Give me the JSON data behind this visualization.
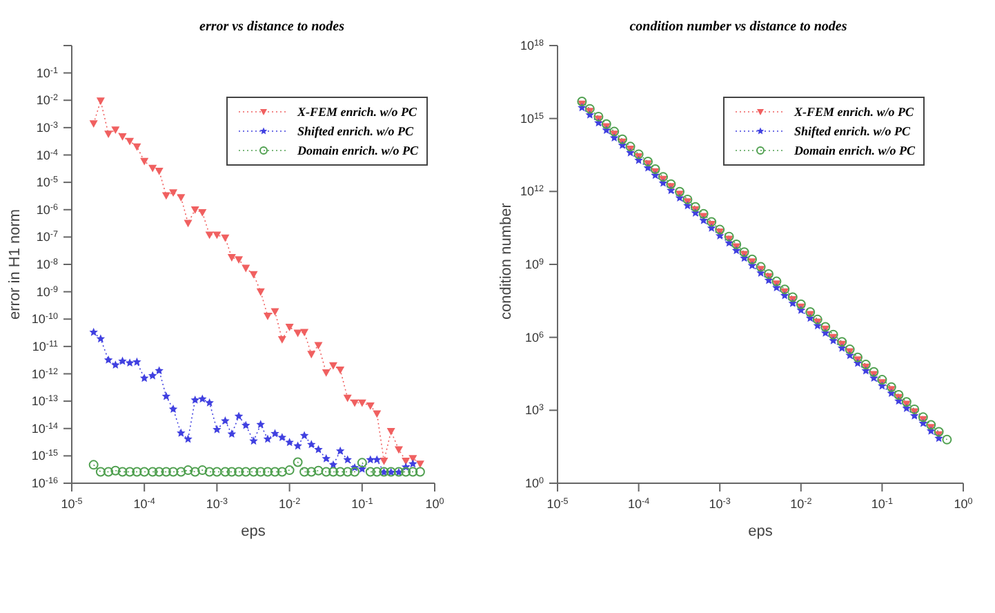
{
  "chart_data": [
    {
      "type": "line",
      "title": "error vs distance to nodes",
      "xlabel": "eps",
      "ylabel": "error in H1 norm",
      "log": "xy",
      "legend": "top right",
      "line_style": "dotted",
      "grid": false,
      "x": [
        2e-05,
        2.5e-05,
        3.2e-05,
        4e-05,
        5e-05,
        6.3e-05,
        7.9e-05,
        0.0001,
        0.00013,
        0.00016,
        0.0002,
        0.00025,
        0.00032,
        0.0004,
        0.0005,
        0.00063,
        0.00079,
        0.001,
        0.0013,
        0.0016,
        0.002,
        0.0025,
        0.0032,
        0.004,
        0.005,
        0.0063,
        0.0079,
        0.01,
        0.013,
        0.016,
        0.02,
        0.025,
        0.032,
        0.04,
        0.05,
        0.063,
        0.079,
        0.1,
        0.13,
        0.16,
        0.2,
        0.25,
        0.32,
        0.4,
        0.5,
        0.63
      ],
      "xlim": [
        1e-05,
        1
      ],
      "xticks": [
        {
          "value": 1e-05,
          "label": "10$^{-5}$"
        },
        {
          "value": 0.0001,
          "label": "10$^{-4}$"
        },
        {
          "value": 0.001,
          "label": "10$^{-3}$"
        },
        {
          "value": 0.01,
          "label": "10$^{-2}$"
        },
        {
          "value": 0.1,
          "label": "10$^{-1}$"
        },
        {
          "value": 1,
          "label": "10$^{0}$"
        }
      ],
      "ylim": [
        1e-16,
        1
      ],
      "yticks": [
        {
          "value": 1e-16,
          "label": "10$^{-16}$"
        },
        {
          "value": 1e-15,
          "label": "10$^{-15}$"
        },
        {
          "value": 1e-14,
          "label": "10$^{-14}$"
        },
        {
          "value": 1e-13,
          "label": "10$^{-13}$"
        },
        {
          "value": 1e-12,
          "label": "10$^{-12}$"
        },
        {
          "value": 1e-11,
          "label": "10$^{-11}$"
        },
        {
          "value": 1e-10,
          "label": "10$^{-10}$"
        },
        {
          "value": 1e-09,
          "label": "10$^{-9}$"
        },
        {
          "value": 1e-08,
          "label": "10$^{-8}$"
        },
        {
          "value": 1e-07,
          "label": "10$^{-7}$"
        },
        {
          "value": 1e-06,
          "label": "10$^{-6}$"
        },
        {
          "value": 1e-05,
          "label": "10$^{-5}$"
        },
        {
          "value": 0.0001,
          "label": "10$^{-4}$"
        },
        {
          "value": 0.001,
          "label": "10$^{-3}$"
        },
        {
          "value": 0.01,
          "label": "10$^{-2}$"
        },
        {
          "value": 0.1,
          "label": "10$^{-1}$"
        },
        {
          "value": 1,
          "label": null
        }
      ],
      "series": [
        {
          "name": "X-FEM enrich. w/o PC",
          "color": "#f06060",
          "marker": "triangle",
          "values": [
            0.0014,
            0.0095,
            0.00059,
            0.00083,
            0.00047,
            0.00032,
            0.0002,
            5.9e-05,
            3.3e-05,
            2.6e-05,
            3.3e-06,
            4.2e-06,
            2.8e-06,
            3.2e-07,
            1e-06,
            7.9e-07,
            1.2e-07,
            1.2e-07,
            9.3e-08,
            1.8e-08,
            1.5e-08,
            7.3e-09,
            4.3e-09,
            1e-09,
            1.3e-10,
            1.9e-10,
            1.8e-11,
            5.1e-11,
            3.1e-11,
            3.3e-11,
            5.2e-12,
            1.1e-11,
            1.1e-12,
            2e-12,
            1.4e-12,
            1.3e-13,
            8.7e-14,
            8.7e-14,
            6.8e-14,
            3.5e-14,
            6.5e-16,
            7.9e-15,
            1.7e-15,
            6.5e-16,
            8.1e-16,
            5.1e-16
          ]
        },
        {
          "name": "Shifted enrich. w/o PC",
          "color": "#4040e0",
          "marker": "star",
          "values": [
            3.3e-11,
            1.9e-11,
            3.2e-12,
            2.1e-12,
            2.9e-12,
            2.5e-12,
            2.7e-12,
            6.9e-13,
            8.5e-13,
            1.3e-12,
            1.5e-13,
            5.1e-14,
            6.8e-15,
            4.1e-15,
            1.1e-13,
            1.2e-13,
            8.7e-14,
            9.1e-15,
            1.9e-14,
            6.3e-15,
            2.8e-14,
            1.3e-14,
            3.5e-15,
            1.4e-14,
            4.1e-15,
            6.5e-15,
            4.7e-15,
            3.1e-15,
            2.3e-15,
            5.5e-15,
            2.6e-15,
            1.7e-15,
            7.9e-16,
            4.7e-16,
            1.5e-15,
            7.2e-16,
            3.7e-16,
            3.3e-16,
            7.2e-16,
            7.2e-16,
            2.5e-16,
            2.5e-16,
            2.5e-16,
            3.9e-16,
            5.1e-16,
            null
          ]
        },
        {
          "name": "Domain enrich. w/o PC",
          "color": "#50a050",
          "marker": "circle",
          "values": [
            4.7e-16,
            2.6e-16,
            2.6e-16,
            2.9e-16,
            2.6e-16,
            2.6e-16,
            2.6e-16,
            2.6e-16,
            2.6e-16,
            2.6e-16,
            2.6e-16,
            2.6e-16,
            2.6e-16,
            3e-16,
            2.6e-16,
            3e-16,
            2.6e-16,
            2.6e-16,
            2.6e-16,
            2.6e-16,
            2.6e-16,
            2.6e-16,
            2.6e-16,
            2.6e-16,
            2.6e-16,
            2.6e-16,
            2.6e-16,
            3e-16,
            5.9e-16,
            2.6e-16,
            2.6e-16,
            2.9e-16,
            2.6e-16,
            2.6e-16,
            2.6e-16,
            2.6e-16,
            2.6e-16,
            5.6e-16,
            2.6e-16,
            2.6e-16,
            2.6e-16,
            2.6e-16,
            2.6e-16,
            2.6e-16,
            2.6e-16,
            2.6e-16
          ]
        }
      ]
    },
    {
      "type": "line",
      "title": "condition number vs distance to nodes",
      "xlabel": "eps",
      "ylabel": "condition number",
      "log": "xy",
      "legend": "top right",
      "line_style": "dotted",
      "grid": false,
      "x": [
        2e-05,
        2.5e-05,
        3.2e-05,
        4e-05,
        5e-05,
        6.3e-05,
        7.9e-05,
        0.0001,
        0.00013,
        0.00016,
        0.0002,
        0.00025,
        0.00032,
        0.0004,
        0.0005,
        0.00063,
        0.00079,
        0.001,
        0.0013,
        0.0016,
        0.002,
        0.0025,
        0.0032,
        0.004,
        0.005,
        0.0063,
        0.0079,
        0.01,
        0.013,
        0.016,
        0.02,
        0.025,
        0.032,
        0.04,
        0.05,
        0.063,
        0.079,
        0.1,
        0.13,
        0.16,
        0.2,
        0.25,
        0.32,
        0.4,
        0.5,
        0.63
      ],
      "xlim": [
        1e-05,
        1
      ],
      "xticks": [
        {
          "value": 1e-05,
          "label": "10$^{-5}$"
        },
        {
          "value": 0.0001,
          "label": "10$^{-4}$"
        },
        {
          "value": 0.001,
          "label": "10$^{-3}$"
        },
        {
          "value": 0.01,
          "label": "10$^{-2}$"
        },
        {
          "value": 0.1,
          "label": "10$^{-1}$"
        },
        {
          "value": 1,
          "label": "10$^{0}$"
        }
      ],
      "ylim": [
        1,
        1e+18
      ],
      "yticks": [
        {
          "value": 1,
          "label": "10$^{0}$"
        },
        {
          "value": 1000.0,
          "label": "10$^{3}$"
        },
        {
          "value": 1000000.0,
          "label": "10$^{6}$"
        },
        {
          "value": 1000000000.0,
          "label": "10$^{9}$"
        },
        {
          "value": 1000000000000.0,
          "label": "10$^{12}$"
        },
        {
          "value": 1000000000000000.0,
          "label": "10$^{15}$"
        },
        {
          "value": 1e+18,
          "label": "10$^{18}$"
        }
      ],
      "series": [
        {
          "name": "X-FEM enrich. w/o PC",
          "color": "#f06060",
          "marker": "triangle",
          "values": [
            4000000000000000.0,
            2000000000000000.0,
            960000000000000.0,
            470000000000000.0,
            230000000000000.0,
            110000000000000.0,
            56000000000000.0,
            27000000000000.0,
            14000000000000.0,
            6600000000000.0,
            3200000000000.0,
            1600000000000.0,
            780000000000.0,
            380000000000.0,
            180000000000.0,
            96000000000.0,
            45000000000.0,
            22000000000.0,
            11000000000.0,
            5400000000.0,
            2600000000.0,
            1300000000.0,
            630000000.0,
            320000000.0,
            160000000.0,
            75000000.0,
            36000000.0,
            18000000.0,
            8800000.0,
            4300000.0,
            2200000.0,
            1000000.0,
            520000.0,
            260000.0,
            120000.0,
            61000.0,
            30000.0,
            14000.0,
            7200.0,
            3400.0,
            1800.0,
            880,
            420,
            200,
            100,
            null
          ]
        },
        {
          "name": "Shifted enrich. w/o PC",
          "color": "#4040e0",
          "marker": "star",
          "values": [
            2800000000000000.0,
            1400000000000000.0,
            660000000000000.0,
            330000000000000.0,
            160000000000000.0,
            79000000000000.0,
            39000000000000.0,
            19000000000000.0,
            9300000000000.0,
            4600000000000.0,
            2200000000000.0,
            1100000000000.0,
            540000000000.0,
            260000000000.0,
            130000000000.0,
            64000000000.0,
            31000000000.0,
            15000000000.0,
            7600000000.0,
            3700000000.0,
            1800000000.0,
            890000000.0,
            440000000.0,
            220000000.0,
            110000000.0,
            52000000.0,
            25000000.0,
            13000000.0,
            6100000.0,
            3000000.0,
            1500000.0,
            730000.0,
            360000.0,
            180000.0,
            86000.0,
            42000.0,
            21000.0,
            10000.0,
            5000.0,
            2400.0,
            1200.0,
            590,
            290,
            140,
            70,
            null
          ]
        },
        {
          "name": "Domain enrich. w/o PC",
          "color": "#50a050",
          "marker": "circle",
          "values": [
            5000000000000000.0,
            2500000000000000.0,
            1200000000000000.0,
            590000000000000.0,
            290000000000000.0,
            140000000000000.0,
            70000000000000.0,
            34000000000000.0,
            17000000000000.0,
            8300000000000.0,
            4000000000000.0,
            2000000000000.0,
            970000000000.0,
            470000000000.0,
            230000000000.0,
            120000000000.0,
            56000000000.0,
            27000000000.0,
            14000000000.0,
            6700000000.0,
            3200000000.0,
            1600000000.0,
            790000000.0,
            400000000.0,
            200000000.0,
            94000000.0,
            45000000.0,
            23000000.0,
            11000000.0,
            5400000.0,
            2700000.0,
            1300000.0,
            650000.0,
            320000.0,
            150000.0,
            76000.0,
            38000.0,
            18000.0,
            9000.0,
            4300.0,
            2200.0,
            1100.0,
            520,
            250,
            130,
            62
          ]
        }
      ]
    }
  ]
}
